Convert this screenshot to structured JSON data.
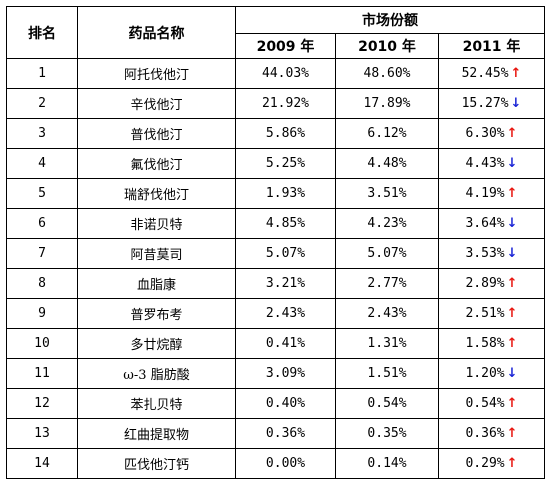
{
  "headers": {
    "rank": "排名",
    "drug_name": "药品名称",
    "market_share": "市场份额",
    "years": [
      "2009 年",
      "2010 年",
      "2011 年"
    ]
  },
  "icons": {
    "up": "arrow-up-icon",
    "down": "arrow-down-icon",
    "up_color": "#e8160f",
    "down_color": "#1a24d6"
  },
  "rows": [
    {
      "rank": "1",
      "name": "阿托伐他汀",
      "y2009": "44.03%",
      "y2010": "48.60%",
      "y2011": "52.45%",
      "trend": "up"
    },
    {
      "rank": "2",
      "name": "辛伐他汀",
      "y2009": "21.92%",
      "y2010": "17.89%",
      "y2011": "15.27%",
      "trend": "down"
    },
    {
      "rank": "3",
      "name": "普伐他汀",
      "y2009": "5.86%",
      "y2010": "6.12%",
      "y2011": "6.30%",
      "trend": "up"
    },
    {
      "rank": "4",
      "name": "氟伐他汀",
      "y2009": "5.25%",
      "y2010": "4.48%",
      "y2011": "4.43%",
      "trend": "down"
    },
    {
      "rank": "5",
      "name": "瑞舒伐他汀",
      "y2009": "1.93%",
      "y2010": "3.51%",
      "y2011": "4.19%",
      "trend": "up"
    },
    {
      "rank": "6",
      "name": "非诺贝特",
      "y2009": "4.85%",
      "y2010": "4.23%",
      "y2011": "3.64%",
      "trend": "down"
    },
    {
      "rank": "7",
      "name": "阿昔莫司",
      "y2009": "5.07%",
      "y2010": "5.07%",
      "y2011": "3.53%",
      "trend": "down"
    },
    {
      "rank": "8",
      "name": "血脂康",
      "y2009": "3.21%",
      "y2010": "2.77%",
      "y2011": "2.89%",
      "trend": "up"
    },
    {
      "rank": "9",
      "name": "普罗布考",
      "y2009": "2.43%",
      "y2010": "2.43%",
      "y2011": "2.51%",
      "trend": "up"
    },
    {
      "rank": "10",
      "name": "多廿烷醇",
      "y2009": "0.41%",
      "y2010": "1.31%",
      "y2011": "1.58%",
      "trend": "up"
    },
    {
      "rank": "11",
      "name": "ω-3 脂肪酸",
      "y2009": "3.09%",
      "y2010": "1.51%",
      "y2011": "1.20%",
      "trend": "down"
    },
    {
      "rank": "12",
      "name": "苯扎贝特",
      "y2009": "0.40%",
      "y2010": "0.54%",
      "y2011": "0.54%",
      "trend": "up"
    },
    {
      "rank": "13",
      "name": "红曲提取物",
      "y2009": "0.36%",
      "y2010": "0.35%",
      "y2011": "0.36%",
      "trend": "up"
    },
    {
      "rank": "14",
      "name": "匹伐他汀钙",
      "y2009": "0.00%",
      "y2010": "0.14%",
      "y2011": "0.29%",
      "trend": "up"
    }
  ]
}
